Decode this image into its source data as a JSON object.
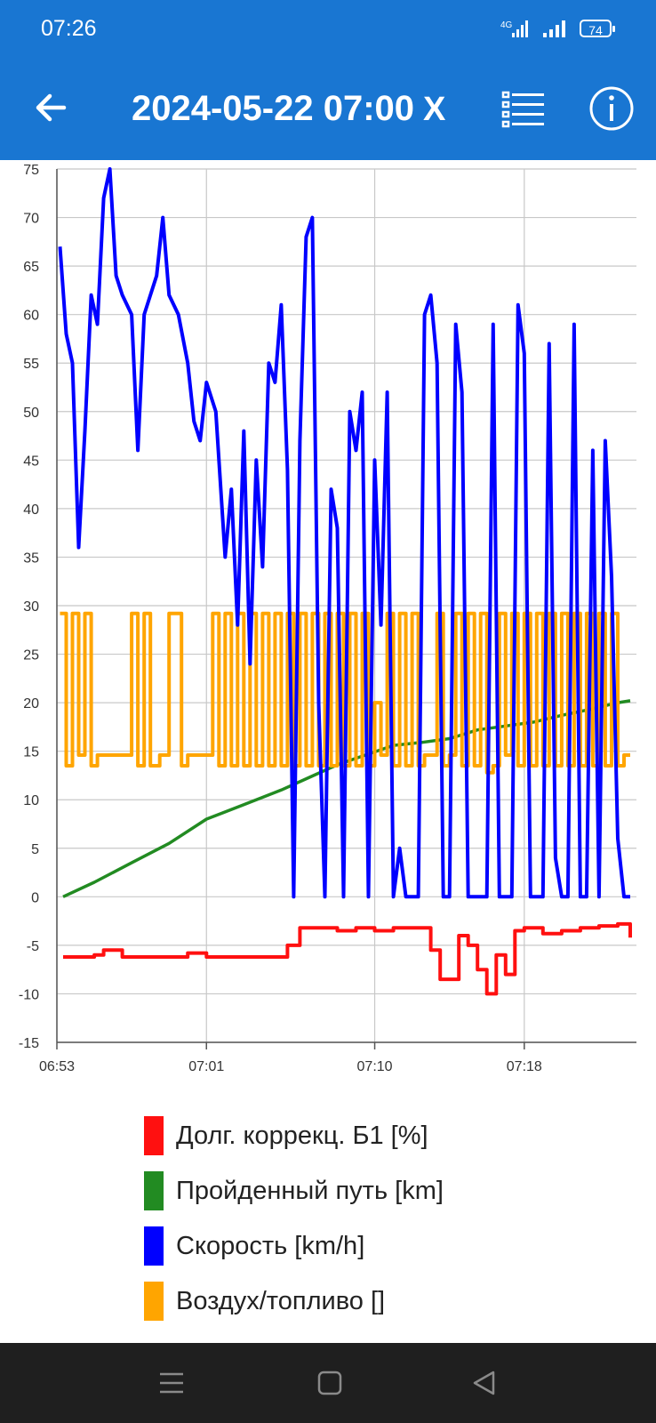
{
  "status_bar": {
    "time": "07:26",
    "network": "4G",
    "battery": "74"
  },
  "app_bar": {
    "back_icon": "arrow-left-icon",
    "title": "2024-05-22 07:00",
    "close_label": "X",
    "list_icon": "list-icon",
    "info_icon": "info-icon"
  },
  "colors": {
    "primary": "#1976d2",
    "red": "#ff1010",
    "green": "#228b22",
    "blue": "#0000ff",
    "orange": "#ffa500"
  },
  "chart_data": {
    "type": "line",
    "x_ticks": [
      "06:53",
      "07:01",
      "07:10",
      "07:18"
    ],
    "xlim": [
      "06:53",
      "07:24"
    ],
    "ylim": [
      -15,
      75
    ],
    "y_ticks": [
      -15,
      -10,
      -5,
      0,
      5,
      10,
      15,
      20,
      25,
      30,
      35,
      40,
      45,
      50,
      55,
      60,
      65,
      70,
      75
    ],
    "grid": true,
    "legend_position": "bottom",
    "series": [
      {
        "name": "Долг. коррекц. Б1 [%]",
        "color": "#ff1010",
        "x": [
          "06:53:20",
          "06:54:00",
          "06:55:00",
          "06:55:30",
          "06:56:00",
          "06:56:30",
          "06:57:00",
          "06:58:00",
          "06:59:00",
          "06:59:30",
          "07:00:00",
          "07:01:00",
          "07:02:00",
          "07:03:00",
          "07:04:00",
          "07:05:00",
          "07:05:20",
          "07:06:00",
          "07:07:00",
          "07:08:00",
          "07:09:00",
          "07:10:00",
          "07:11:00",
          "07:12:00",
          "07:13:00",
          "07:13:30",
          "07:14:00",
          "07:14:30",
          "07:15:00",
          "07:15:30",
          "07:16:00",
          "07:16:30",
          "07:17:00",
          "07:17:30",
          "07:18:00",
          "07:19:00",
          "07:20:00",
          "07:21:00",
          "07:22:00",
          "07:23:00",
          "07:23:40"
        ],
        "y": [
          -6.2,
          -6.2,
          -6.0,
          -5.5,
          -5.5,
          -6.2,
          -6.2,
          -6.2,
          -6.2,
          -6.2,
          -5.8,
          -6.2,
          -6.2,
          -6.2,
          -6.2,
          -6.2,
          -5.0,
          -3.2,
          -3.2,
          -3.5,
          -3.2,
          -3.5,
          -3.2,
          -3.2,
          -5.5,
          -8.5,
          -8.5,
          -4.0,
          -5.0,
          -7.5,
          -10.0,
          -6.0,
          -8.0,
          -3.5,
          -3.2,
          -3.8,
          -3.5,
          -3.2,
          -3.0,
          -2.8,
          -4.2
        ]
      },
      {
        "name": "Пройденный путь [km]",
        "color": "#228b22",
        "x": [
          "06:53:20",
          "06:55:00",
          "06:57:00",
          "06:59:00",
          "07:01:00",
          "07:03:00",
          "07:05:00",
          "07:06:30",
          "07:08:00",
          "07:09:30",
          "07:11:00",
          "07:12:30",
          "07:14:00",
          "07:15:30",
          "07:17:00",
          "07:18:30",
          "07:20:00",
          "07:21:30",
          "07:23:00",
          "07:23:40"
        ],
        "y": [
          0,
          1.5,
          3.5,
          5.5,
          8.0,
          9.5,
          11.0,
          12.3,
          13.6,
          14.6,
          15.6,
          15.9,
          16.3,
          17.2,
          17.6,
          18.0,
          18.7,
          19.3,
          20.0,
          20.2
        ]
      },
      {
        "name": "Скорость [km/h]",
        "color": "#0000ff",
        "x": [
          "06:53:10",
          "06:53:30",
          "06:53:50",
          "06:54:10",
          "06:54:30",
          "06:54:50",
          "06:55:10",
          "06:55:30",
          "06:55:50",
          "06:56:10",
          "06:56:30",
          "06:57:00",
          "06:57:20",
          "06:57:40",
          "06:58:00",
          "06:58:20",
          "06:58:40",
          "06:59:00",
          "06:59:30",
          "07:00:00",
          "07:00:20",
          "07:00:40",
          "07:01:00",
          "07:01:30",
          "07:02:00",
          "07:02:20",
          "07:02:40",
          "07:03:00",
          "07:03:20",
          "07:03:40",
          "07:04:00",
          "07:04:20",
          "07:04:40",
          "07:05:00",
          "07:05:20",
          "07:05:40",
          "07:06:00",
          "07:06:20",
          "07:06:40",
          "07:07:00",
          "07:07:20",
          "07:07:40",
          "07:08:00",
          "07:08:20",
          "07:08:40",
          "07:09:00",
          "07:09:20",
          "07:09:40",
          "07:10:00",
          "07:10:20",
          "07:10:40",
          "07:11:00",
          "07:11:20",
          "07:11:40",
          "07:12:00",
          "07:12:20",
          "07:12:40",
          "07:13:00",
          "07:13:20",
          "07:13:40",
          "07:14:00",
          "07:14:20",
          "07:14:40",
          "07:15:00",
          "07:15:20",
          "07:15:40",
          "07:16:00",
          "07:16:20",
          "07:16:40",
          "07:17:00",
          "07:17:20",
          "07:17:40",
          "07:18:00",
          "07:18:20",
          "07:18:40",
          "07:19:00",
          "07:19:20",
          "07:19:40",
          "07:20:00",
          "07:20:20",
          "07:20:40",
          "07:21:00",
          "07:21:20",
          "07:21:40",
          "07:22:00",
          "07:22:20",
          "07:22:40",
          "07:23:00",
          "07:23:20",
          "07:23:40"
        ],
        "y": [
          67,
          58,
          55,
          36,
          48,
          62,
          59,
          72,
          75,
          64,
          62,
          60,
          46,
          60,
          62,
          64,
          70,
          62,
          60,
          55,
          49,
          47,
          53,
          50,
          35,
          42,
          28,
          48,
          24,
          45,
          34,
          55,
          53,
          61,
          44,
          0,
          47,
          68,
          70,
          20,
          0,
          42,
          38,
          0,
          50,
          46,
          52,
          0,
          45,
          28,
          52,
          0,
          5,
          0,
          0,
          0,
          60,
          62,
          55,
          0,
          0,
          59,
          52,
          0,
          0,
          0,
          0,
          59,
          0,
          0,
          0,
          61,
          56,
          0,
          0,
          0,
          57,
          4,
          0,
          0,
          59,
          0,
          0,
          46,
          0,
          47,
          33,
          6,
          0,
          0
        ]
      },
      {
        "name": "Воздух/топливо []",
        "color": "#ffa500",
        "x": [
          "06:53:10",
          "06:53:30",
          "06:53:50",
          "06:54:10",
          "06:54:30",
          "06:54:50",
          "06:55:10",
          "06:55:30",
          "06:55:50",
          "06:56:10",
          "06:56:30",
          "06:57:00",
          "06:57:20",
          "06:57:40",
          "06:58:00",
          "06:58:30",
          "06:59:00",
          "06:59:20",
          "06:59:40",
          "07:00:00",
          "07:00:30",
          "07:01:00",
          "07:01:20",
          "07:01:40",
          "07:02:00",
          "07:02:20",
          "07:02:40",
          "07:03:00",
          "07:03:20",
          "07:03:40",
          "07:04:00",
          "07:04:20",
          "07:04:40",
          "07:05:00",
          "07:05:20",
          "07:05:40",
          "07:06:00",
          "07:06:20",
          "07:06:40",
          "07:07:00",
          "07:07:20",
          "07:07:40",
          "07:08:00",
          "07:08:20",
          "07:08:40",
          "07:09:00",
          "07:09:20",
          "07:09:40",
          "07:10:00",
          "07:10:20",
          "07:10:40",
          "07:11:00",
          "07:11:20",
          "07:11:40",
          "07:12:00",
          "07:12:20",
          "07:12:40",
          "07:13:00",
          "07:13:20",
          "07:13:40",
          "07:14:00",
          "07:14:20",
          "07:14:40",
          "07:15:00",
          "07:15:20",
          "07:15:40",
          "07:16:00",
          "07:16:20",
          "07:16:40",
          "07:17:00",
          "07:17:20",
          "07:17:40",
          "07:18:00",
          "07:18:20",
          "07:18:40",
          "07:19:00",
          "07:19:20",
          "07:19:40",
          "07:20:00",
          "07:20:20",
          "07:20:40",
          "07:21:00",
          "07:21:20",
          "07:21:40",
          "07:22:00",
          "07:22:20",
          "07:22:40",
          "07:23:00",
          "07:23:20",
          "07:23:40"
        ],
        "y": [
          29.2,
          13.5,
          29.2,
          14.6,
          29.2,
          13.5,
          14.6,
          14.6,
          14.6,
          14.6,
          14.6,
          29.2,
          13.5,
          29.2,
          13.5,
          14.6,
          29.2,
          29.2,
          13.5,
          14.6,
          14.6,
          14.6,
          29.2,
          13.5,
          29.2,
          13.5,
          29.2,
          13.5,
          29.2,
          13.5,
          29.2,
          13.5,
          29.2,
          13.5,
          29.2,
          13.5,
          29.2,
          13.5,
          29.2,
          13.5,
          29.2,
          13.5,
          29.2,
          13.5,
          29.2,
          13.5,
          29.2,
          13.5,
          20.0,
          14.6,
          29.2,
          13.5,
          29.2,
          13.5,
          29.2,
          13.5,
          14.6,
          14.6,
          29.2,
          13.5,
          14.6,
          29.2,
          13.5,
          29.2,
          13.5,
          29.2,
          12.8,
          13.5,
          29.2,
          14.6,
          29.2,
          13.5,
          29.2,
          13.5,
          29.2,
          13.5,
          29.2,
          13.5,
          29.2,
          13.5,
          29.2,
          13.5,
          29.2,
          13.5,
          29.2,
          13.5,
          29.2,
          13.5,
          14.6,
          14.6
        ]
      }
    ]
  },
  "nav_bar": {
    "menu_icon": "menu-icon",
    "home_icon": "home-square-icon",
    "back_icon": "back-triangle-icon"
  }
}
